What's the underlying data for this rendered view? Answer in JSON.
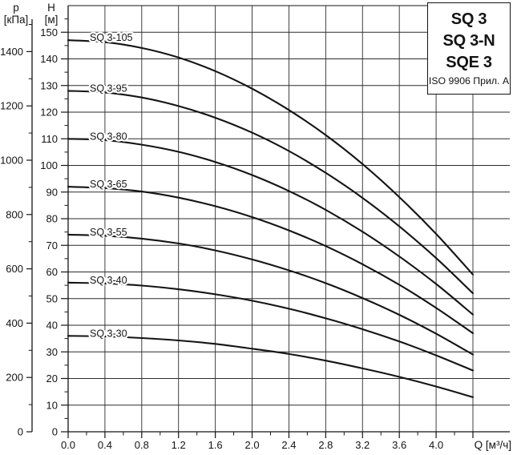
{
  "legend": {
    "models": [
      "SQ 3",
      "SQ 3-N",
      "SQE 3"
    ],
    "standard": "ISO 9906 Прил. A"
  },
  "axes": {
    "p": {
      "title": "p",
      "unit": "[кПа]",
      "labeled_ticks": [
        0,
        200,
        400,
        600,
        800,
        1000,
        1200,
        1400
      ],
      "minor_step": 100,
      "axis_max": 1500
    },
    "h": {
      "title": "H",
      "unit": "[м]",
      "labeled_ticks": [
        0,
        10,
        20,
        30,
        40,
        50,
        60,
        70,
        80,
        90,
        100,
        110,
        120,
        130,
        140,
        150
      ],
      "minor_step": 5,
      "axis_max": 160
    },
    "q": {
      "title": "Q [м³/ч]",
      "labeled_ticks": [
        "0.0",
        "0.4",
        "0.8",
        "1.2",
        "1.6",
        "2.0",
        "2.4",
        "2.8",
        "3.2",
        "3.6",
        "4.0"
      ],
      "minor_step": 0.2,
      "minor_max": 4.4
    }
  },
  "chart_data": {
    "type": "line",
    "xlabel": "Q [м³/ч]",
    "ylabel": "H [м]",
    "y2label": "p [кПа]",
    "xlim": [
      0,
      4.8
    ],
    "ylim": [
      0,
      160
    ],
    "grid": true,
    "legend_position": "top-right",
    "kpa_per_m": 9.81,
    "x": [
      0,
      0.4,
      0.8,
      1.2,
      1.6,
      2.0,
      2.4,
      2.8,
      3.2,
      3.6,
      4.0,
      4.4
    ],
    "series": [
      {
        "name": "SQ 3-105",
        "values": [
          147,
          146.3,
          144.1,
          140.5,
          135.4,
          128.8,
          120.8,
          111.4,
          100.5,
          88.1,
          74.3,
          59
        ]
      },
      {
        "name": "SQ 3-95",
        "values": [
          128,
          127.4,
          125.5,
          122.3,
          117.9,
          112.3,
          105.4,
          97.2,
          87.8,
          77.1,
          65.2,
          52
        ]
      },
      {
        "name": "SQ 3-80",
        "values": [
          110,
          109.5,
          107.8,
          105.1,
          101.3,
          96.4,
          90.4,
          83.3,
          75.1,
          65.8,
          55.5,
          44
        ]
      },
      {
        "name": "SQ 3-65",
        "values": [
          92,
          91.5,
          90.2,
          87.9,
          84.7,
          80.6,
          75.6,
          69.7,
          62.9,
          55.2,
          46.5,
          37
        ]
      },
      {
        "name": "SQ 3-55",
        "values": [
          74,
          73.6,
          72.5,
          70.7,
          68.1,
          64.7,
          60.6,
          55.8,
          50.2,
          43.9,
          36.8,
          29
        ]
      },
      {
        "name": "SQ 3-40",
        "values": [
          56,
          55.7,
          54.9,
          53.5,
          51.6,
          49.2,
          46.2,
          42.6,
          38.5,
          33.9,
          28.7,
          23
        ]
      },
      {
        "name": "SQ 3-30",
        "values": [
          36,
          35.8,
          35.2,
          34.3,
          33.0,
          31.2,
          29.2,
          26.7,
          23.8,
          20.6,
          17.0,
          13
        ]
      }
    ]
  },
  "colors": {
    "ink": "#141414",
    "grid": "#2b2b2b",
    "background": "#ffffff"
  }
}
